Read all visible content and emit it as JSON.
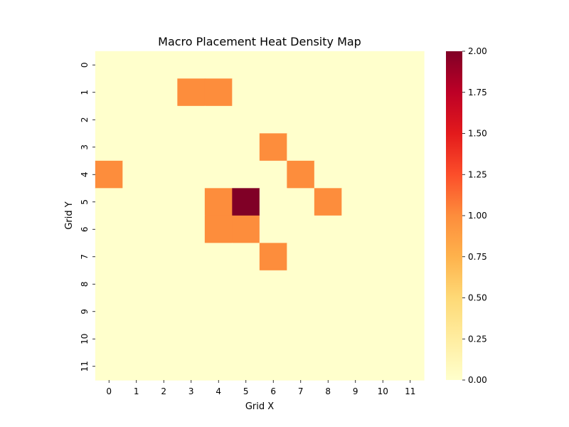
{
  "chart_data": {
    "type": "heatmap",
    "title": "Macro Placement Heat Density Map",
    "xlabel": "Grid X",
    "ylabel": "Grid Y",
    "x_ticks": [
      "0",
      "1",
      "2",
      "3",
      "4",
      "5",
      "6",
      "7",
      "8",
      "9",
      "10",
      "11"
    ],
    "y_ticks": [
      "0",
      "1",
      "2",
      "3",
      "4",
      "5",
      "6",
      "7",
      "8",
      "9",
      "10",
      "11"
    ],
    "values": [
      [
        0,
        0,
        0,
        0,
        0,
        0,
        0,
        0,
        0,
        0,
        0,
        0
      ],
      [
        0,
        0,
        0,
        1,
        1,
        0,
        0,
        0,
        0,
        0,
        0,
        0
      ],
      [
        0,
        0,
        0,
        0,
        0,
        0,
        0,
        0,
        0,
        0,
        0,
        0
      ],
      [
        0,
        0,
        0,
        0,
        0,
        0,
        1,
        0,
        0,
        0,
        0,
        0
      ],
      [
        1,
        0,
        0,
        0,
        0,
        0,
        0,
        1,
        0,
        0,
        0,
        0
      ],
      [
        0,
        0,
        0,
        0,
        1,
        2,
        0,
        0,
        1,
        0,
        0,
        0
      ],
      [
        0,
        0,
        0,
        0,
        1,
        1,
        0,
        0,
        0,
        0,
        0,
        0
      ],
      [
        0,
        0,
        0,
        0,
        0,
        0,
        1,
        0,
        0,
        0,
        0,
        0
      ],
      [
        0,
        0,
        0,
        0,
        0,
        0,
        0,
        0,
        0,
        0,
        0,
        0
      ],
      [
        0,
        0,
        0,
        0,
        0,
        0,
        0,
        0,
        0,
        0,
        0,
        0
      ],
      [
        0,
        0,
        0,
        0,
        0,
        0,
        0,
        0,
        0,
        0,
        0,
        0
      ],
      [
        0,
        0,
        0,
        0,
        0,
        0,
        0,
        0,
        0,
        0,
        0,
        0
      ]
    ],
    "colormap": "YlOrRd",
    "colormap_stops": [
      "#ffffcc",
      "#ffeda0",
      "#fed976",
      "#feb24c",
      "#fd8d3c",
      "#fc4e2a",
      "#e31a1c",
      "#bd0026",
      "#800026"
    ],
    "vmin": 0,
    "vmax": 2,
    "colorbar_ticks": [
      "0.00",
      "0.25",
      "0.50",
      "0.75",
      "1.00",
      "1.25",
      "1.50",
      "1.75",
      "2.00"
    ]
  }
}
